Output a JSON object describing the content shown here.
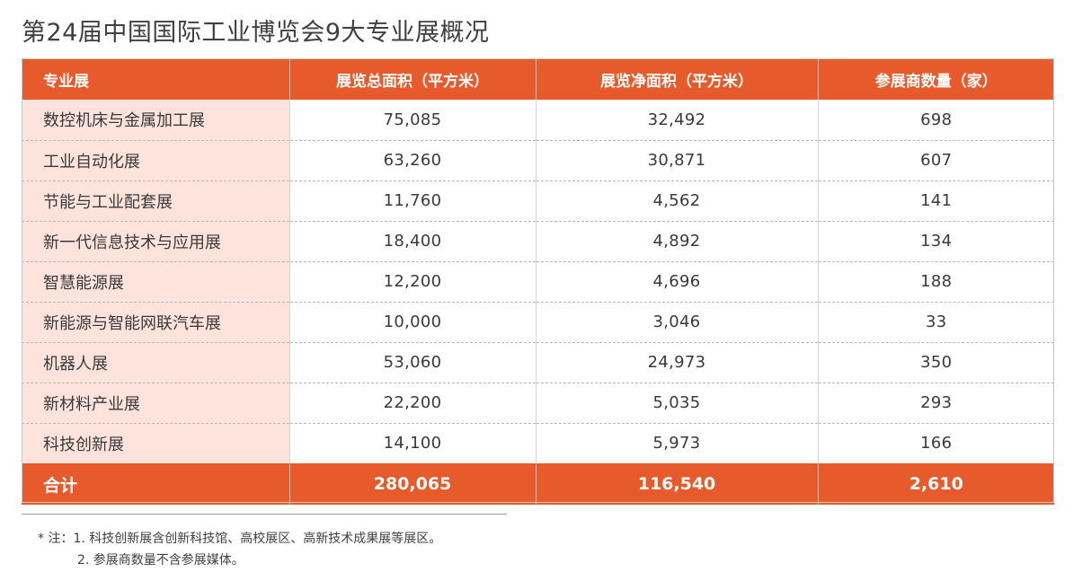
{
  "title": "第24届中国国际工业博览会9大专业展概况",
  "table": {
    "headers": [
      "专业展",
      "展览总面积（平方米）",
      "展览净面积（平方米）",
      "参展商数量（家）"
    ],
    "rows": [
      [
        "数控机床与金属加工展",
        "75,085",
        "32,492",
        "698"
      ],
      [
        "工业自动化展",
        "63,260",
        "30,871",
        "607"
      ],
      [
        "节能与工业配套展",
        "11,760",
        "4,562",
        "141"
      ],
      [
        "新一代信息技术与应用展",
        "18,400",
        "4,892",
        "134"
      ],
      [
        "智慧能源展",
        "12,200",
        "4,696",
        "188"
      ],
      [
        "新能源与智能网联汽车展",
        "10,000",
        "3,046",
        "33"
      ],
      [
        "机器人展",
        "53,060",
        "24,973",
        "350"
      ],
      [
        "新材料产业展",
        "22,200",
        "5,035",
        "293"
      ],
      [
        "科技创新展",
        "14,100",
        "5,973",
        "166"
      ]
    ],
    "total": [
      "合计",
      "280,065",
      "116,540",
      "2,610"
    ]
  },
  "notes": [
    "* 注：1. 科技创新展含创新科技馆、高校展区、高新技术成果展等展区。",
    "2. 参展商数量不含参展媒体。"
  ],
  "colors": {
    "header_bg": "#e75a2b",
    "first_column_bg": "#fde3dc",
    "header_text": "#ffffff"
  }
}
